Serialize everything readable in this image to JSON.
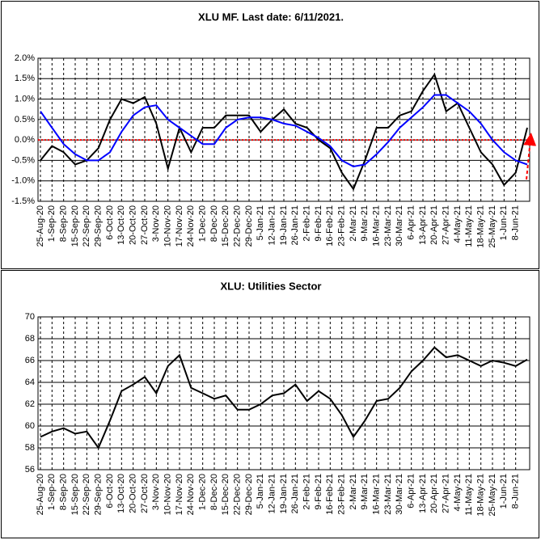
{
  "chart_data": [
    {
      "type": "line",
      "title": "XLU MF. Last date: 6/11/2021.",
      "categories": [
        "25-Aug-20",
        "1-Sep-20",
        "8-Sep-20",
        "15-Sep-20",
        "22-Sep-20",
        "29-Sep-20",
        "6-Oct-20",
        "13-Oct-20",
        "20-Oct-20",
        "27-Oct-20",
        "3-Nov-20",
        "10-Nov-20",
        "17-Nov-20",
        "24-Nov-20",
        "1-Dec-20",
        "8-Dec-20",
        "15-Dec-20",
        "22-Dec-20",
        "29-Dec-20",
        "5-Jan-21",
        "12-Jan-21",
        "19-Jan-21",
        "26-Jan-21",
        "2-Feb-21",
        "9-Feb-21",
        "16-Feb-21",
        "23-Feb-21",
        "2-Mar-21",
        "9-Mar-21",
        "16-Mar-21",
        "23-Mar-21",
        "30-Mar-21",
        "6-Apr-21",
        "13-Apr-21",
        "20-Apr-21",
        "27-Apr-21",
        "4-May-21",
        "11-May-21",
        "18-May-21",
        "25-May-21",
        "1-Jun-21",
        "8-Jun-21",
        null
      ],
      "series": [
        {
          "color": "#000000",
          "values": [
            -0.5,
            -0.15,
            -0.3,
            -0.6,
            -0.5,
            -0.2,
            0.5,
            1.0,
            0.9,
            1.05,
            0.4,
            -0.7,
            0.3,
            -0.3,
            0.3,
            0.3,
            0.6,
            0.6,
            0.6,
            0.2,
            0.5,
            0.75,
            0.4,
            0.3,
            0.0,
            -0.2,
            -0.8,
            -1.2,
            -0.5,
            0.3,
            0.3,
            0.6,
            0.7,
            1.2,
            1.6,
            0.7,
            0.9,
            0.3,
            -0.3,
            -0.6,
            -1.1,
            -0.8,
            0.3
          ]
        },
        {
          "color": "#0000ff",
          "values": [
            0.7,
            0.3,
            -0.1,
            -0.35,
            -0.5,
            -0.5,
            -0.3,
            0.2,
            0.6,
            0.8,
            0.85,
            0.5,
            0.3,
            0.1,
            -0.1,
            -0.1,
            0.3,
            0.5,
            0.55,
            0.55,
            0.5,
            0.4,
            0.35,
            0.2,
            0.05,
            -0.15,
            -0.5,
            -0.65,
            -0.6,
            -0.35,
            -0.05,
            0.3,
            0.55,
            0.8,
            1.1,
            1.1,
            0.9,
            0.7,
            0.4,
            0.0,
            -0.3,
            -0.5,
            -0.6
          ]
        }
      ],
      "hline": {
        "value": 0,
        "color": "#ff0000"
      },
      "ylim": [
        -1.5,
        2.0
      ],
      "yticks": [
        {
          "value": -1.5,
          "label": "-1.5%"
        },
        {
          "value": -1.0,
          "label": "-1.0%"
        },
        {
          "value": -0.5,
          "label": "-0.5%"
        },
        {
          "value": 0,
          "label": "0.0%"
        },
        {
          "value": 0.5,
          "label": "0.5%"
        },
        {
          "value": 1.0,
          "label": "1.0%"
        },
        {
          "value": 1.5,
          "label": "1.5%"
        },
        {
          "value": 2.0,
          "label": "2.0%"
        }
      ],
      "grid": true
    },
    {
      "type": "line",
      "title": "XLU: Utilities Sector",
      "categories": [
        "25-Aug-20",
        "1-Sep-20",
        "8-Sep-20",
        "15-Sep-20",
        "22-Sep-20",
        "29-Sep-20",
        "6-Oct-20",
        "13-Oct-20",
        "20-Oct-20",
        "27-Oct-20",
        "3-Nov-20",
        "10-Nov-20",
        "17-Nov-20",
        "24-Nov-20",
        "1-Dec-20",
        "8-Dec-20",
        "15-Dec-20",
        "22-Dec-20",
        "29-Dec-20",
        "5-Jan-21",
        "12-Jan-21",
        "19-Jan-21",
        "26-Jan-21",
        "2-Feb-21",
        "9-Feb-21",
        "16-Feb-21",
        "23-Feb-21",
        "2-Mar-21",
        "9-Mar-21",
        "16-Mar-21",
        "23-Mar-21",
        "30-Mar-21",
        "6-Apr-21",
        "13-Apr-21",
        "20-Apr-21",
        "27-Apr-21",
        "4-May-21",
        "11-May-21",
        "18-May-21",
        "25-May-21",
        "1-Jun-21",
        "8-Jun-21",
        null
      ],
      "series": [
        {
          "color": "#000000",
          "values": [
            59,
            59.5,
            59.8,
            59.3,
            59.5,
            58.0,
            60.5,
            63.2,
            63.8,
            64.5,
            63,
            65.5,
            66.5,
            63.5,
            63.0,
            62.5,
            62.8,
            61.5,
            61.5,
            62.0,
            62.8,
            63.0,
            63.8,
            62.3,
            63.2,
            62.5,
            61.0,
            59.0,
            60.5,
            62.3,
            62.5,
            63.5,
            65.0,
            66.0,
            67.2,
            66.3,
            66.5,
            66.0,
            65.5,
            66.0,
            65.8,
            65.5,
            66.1
          ]
        }
      ],
      "ylim": [
        56,
        70
      ],
      "yticks": [
        56,
        58,
        60,
        62,
        64,
        66,
        68,
        70
      ],
      "grid": true
    }
  ]
}
